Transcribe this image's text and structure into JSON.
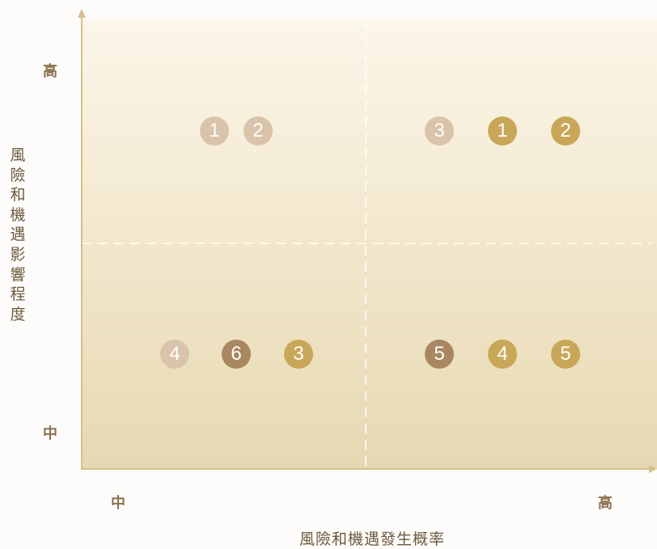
{
  "axes": {
    "y_title": "風險和機遇影響程度",
    "x_title": "風險和機遇發生概率",
    "y_high": "高",
    "y_mid": "中",
    "x_mid": "中",
    "x_high": "高"
  },
  "colors": {
    "light": "#d9c3aa",
    "gold": "#c9a758",
    "brown": "#a98861",
    "axis": "#d6c08a",
    "tick_text": "#8a7250"
  },
  "items": [
    {
      "label": "1",
      "quadrant": "top-left",
      "color": "light"
    },
    {
      "label": "2",
      "quadrant": "top-left",
      "color": "light"
    },
    {
      "label": "3",
      "quadrant": "top-right",
      "color": "light"
    },
    {
      "label": "1",
      "quadrant": "top-right",
      "color": "gold"
    },
    {
      "label": "2",
      "quadrant": "top-right",
      "color": "gold"
    },
    {
      "label": "4",
      "quadrant": "bottom-left",
      "color": "light"
    },
    {
      "label": "6",
      "quadrant": "bottom-left",
      "color": "brown"
    },
    {
      "label": "3",
      "quadrant": "bottom-left",
      "color": "gold"
    },
    {
      "label": "5",
      "quadrant": "bottom-right",
      "color": "brown"
    },
    {
      "label": "4",
      "quadrant": "bottom-right",
      "color": "gold"
    },
    {
      "label": "5",
      "quadrant": "bottom-right",
      "color": "gold"
    }
  ]
}
